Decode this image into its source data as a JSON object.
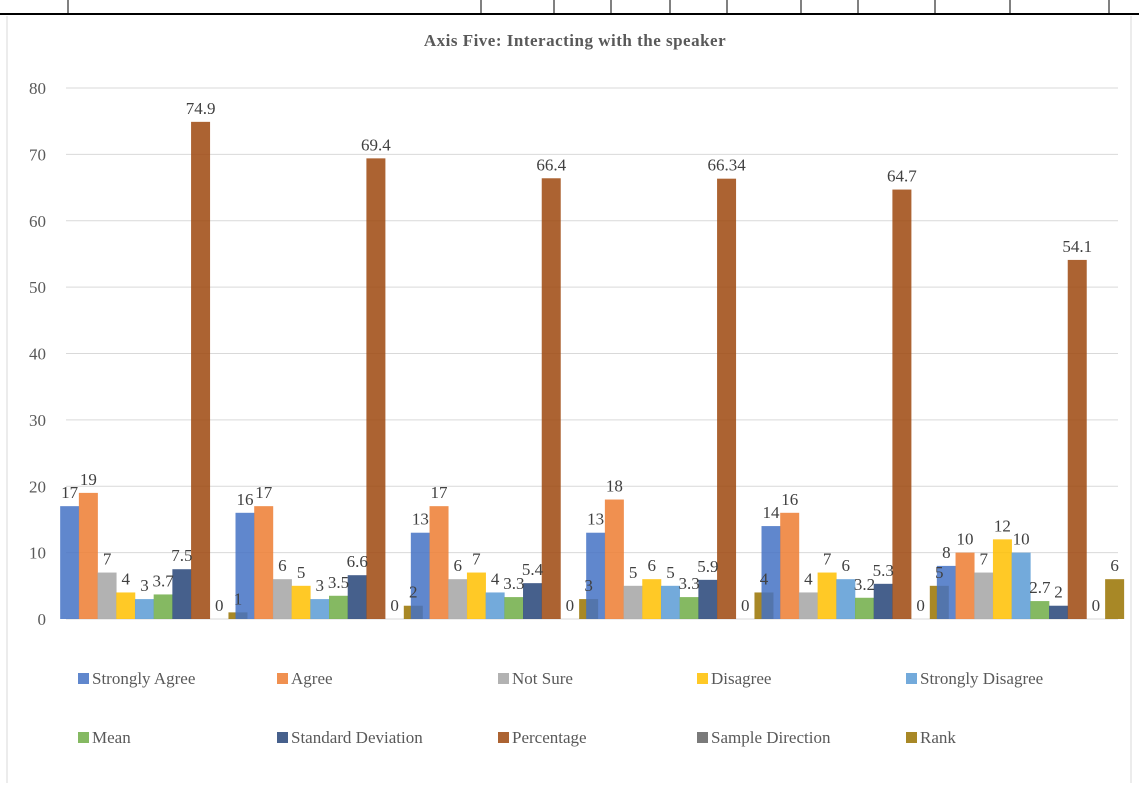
{
  "chart_data": {
    "type": "bar",
    "title": "Axis Five: Interacting with the speaker",
    "xlabel": "",
    "ylabel": "",
    "ylim": [
      0,
      80
    ],
    "yticks": [
      0,
      10,
      20,
      30,
      40,
      50,
      60,
      70,
      80
    ],
    "grid": true,
    "legend_position": "bottom",
    "categories": [
      "",
      "",
      "",
      "",
      "",
      ""
    ],
    "series": [
      {
        "name": "Strongly Agree",
        "color": "#4472C4",
        "values": [
          17,
          16,
          13,
          13,
          14,
          8
        ],
        "labels": [
          "17",
          "16",
          "13",
          "13",
          "14",
          "8"
        ]
      },
      {
        "name": "Agree",
        "color": "#ED7D31",
        "values": [
          19,
          17,
          17,
          18,
          16,
          10
        ],
        "labels": [
          "19",
          "17",
          "17",
          "18",
          "16",
          "10"
        ]
      },
      {
        "name": "Not Sure",
        "color": "#A5A5A5",
        "values": [
          7,
          6,
          6,
          5,
          4,
          7
        ],
        "labels": [
          "7",
          "6",
          "6",
          "5",
          "4",
          "7"
        ]
      },
      {
        "name": "Disagree",
        "color": "#FFC000",
        "values": [
          4,
          5,
          7,
          6,
          7,
          12
        ],
        "labels": [
          "4",
          "5",
          "7",
          "6",
          "7",
          "12"
        ]
      },
      {
        "name": "Strongly Disagree",
        "color": "#5B9BD5",
        "values": [
          3,
          3,
          4,
          5,
          6,
          10
        ],
        "labels": [
          "3",
          "3",
          "4",
          "5",
          "6",
          "10"
        ]
      },
      {
        "name": "Mean",
        "color": "#70AD47",
        "values": [
          3.7,
          3.5,
          3.3,
          3.3,
          3.2,
          2.7
        ],
        "labels": [
          "3.7",
          "3.5",
          "3.3",
          "3.3",
          "3.2",
          "2.7"
        ]
      },
      {
        "name": "Standard Deviation",
        "color": "#264478",
        "values": [
          7.5,
          6.6,
          5.4,
          5.9,
          5.3,
          2
        ],
        "labels": [
          "7.5",
          "6.6",
          "5.4",
          "5.9",
          "5.3",
          "2"
        ]
      },
      {
        "name": "Percentage",
        "color": "#9E480E",
        "values": [
          74.9,
          69.4,
          66.4,
          66.34,
          64.7,
          54.1
        ],
        "labels": [
          "74.9",
          "69.4",
          "66.4",
          "66.34",
          "64.7",
          "54.1"
        ]
      },
      {
        "name": "Sample Direction",
        "color": "#636363",
        "values": [
          0,
          0,
          0,
          0,
          0,
          0
        ],
        "labels": [
          "0",
          "0",
          "0",
          "0",
          "0",
          "0"
        ]
      },
      {
        "name": "Rank",
        "color": "#997300",
        "values": [
          1,
          2,
          3,
          4,
          5,
          6
        ],
        "labels": [
          "1",
          "2",
          "3",
          "4",
          "5",
          "6"
        ]
      }
    ]
  }
}
